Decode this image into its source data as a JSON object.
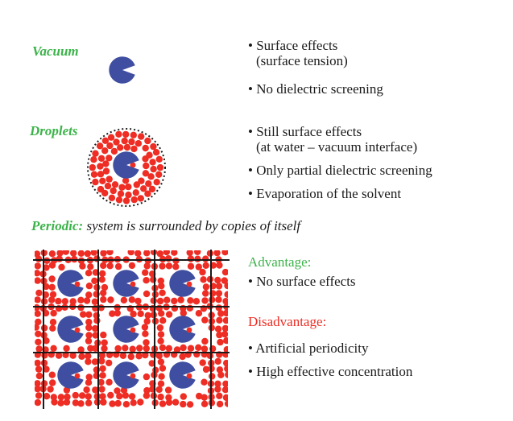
{
  "vacuum": {
    "label": "Vacuum",
    "bullets": [
      {
        "line1": "• Surface effects",
        "line2": "(surface tension)"
      },
      {
        "line1": "• No dielectric screening",
        "line2": ""
      }
    ]
  },
  "droplets": {
    "label": "Droplets",
    "bullets": [
      {
        "line1": "• Still surface effects",
        "line2": "(at water – vacuum interface)"
      },
      {
        "line1": "• Only partial dielectric screening",
        "line2": ""
      },
      {
        "line1": "• Evaporation of the solvent",
        "line2": ""
      }
    ]
  },
  "periodic": {
    "label": "Periodic:",
    "description": " system is surrounded by copies of itself",
    "advantage_label": "Advantage:",
    "advantages": [
      "• No surface effects"
    ],
    "disadvantage_label": "Disadvantage:",
    "disadvantages": [
      "• Artificial periodicity",
      "• High effective concentration"
    ]
  },
  "colors": {
    "green": "#3cb34a",
    "red": "#ee2d24",
    "molecule_blue": "#3f4ea0",
    "text": "#1a1a1a"
  }
}
